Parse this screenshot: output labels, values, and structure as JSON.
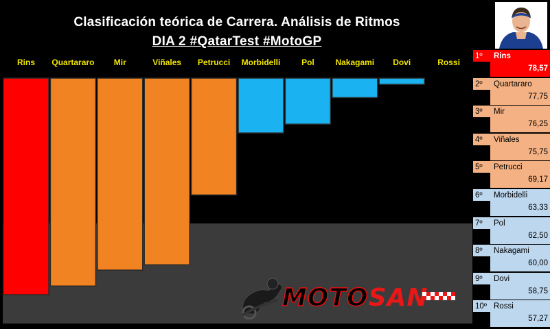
{
  "title": "Clasificación teórica de Carrera. Análisis de Ritmos",
  "subtitle": "DIA 2 #QatarTest #MotoGP",
  "logo": {
    "part1": "MOTO",
    "part2": "SAN"
  },
  "chart_data": {
    "type": "bar",
    "categories": [
      "Rins",
      "Quartararo",
      "Mir",
      "Viñales",
      "Petrucci",
      "Morbidelli",
      "Pol",
      "Nakagami",
      "Dovi",
      "Rossi"
    ],
    "values": [
      78.57,
      77.75,
      76.25,
      75.75,
      69.17,
      63.33,
      62.5,
      60.0,
      58.75,
      57.27
    ],
    "colors": [
      "#ff0000",
      "#f28322",
      "#f28322",
      "#f28322",
      "#f28322",
      "#1ab2f0",
      "#1ab2f0",
      "#1ab2f0",
      "#1ab2f0",
      "#1ab2f0"
    ],
    "ylim": [
      0,
      80
    ],
    "grid": false,
    "legend": "none"
  },
  "standings": [
    {
      "pos": "1º",
      "name": "Rins",
      "value": "78,57",
      "bg": "#ff0000",
      "fg": "#ffffff"
    },
    {
      "pos": "2º",
      "name": "Quartararo",
      "value": "77,75",
      "bg": "#f4b183",
      "fg": "#000000"
    },
    {
      "pos": "3º",
      "name": "Mir",
      "value": "76,25",
      "bg": "#f4b183",
      "fg": "#000000"
    },
    {
      "pos": "4º",
      "name": "Viñales",
      "value": "75,75",
      "bg": "#f4b183",
      "fg": "#000000"
    },
    {
      "pos": "5º",
      "name": "Petrucci",
      "value": "69,17",
      "bg": "#f4b183",
      "fg": "#000000"
    },
    {
      "pos": "6º",
      "name": "Morbidelli",
      "value": "63,33",
      "bg": "#bdd7ee",
      "fg": "#000000"
    },
    {
      "pos": "7º",
      "name": "Pol",
      "value": "62,50",
      "bg": "#bdd7ee",
      "fg": "#000000"
    },
    {
      "pos": "8º",
      "name": "Nakagami",
      "value": "60,00",
      "bg": "#bdd7ee",
      "fg": "#000000"
    },
    {
      "pos": "9º",
      "name": "Dovi",
      "value": "58,75",
      "bg": "#bdd7ee",
      "fg": "#000000"
    },
    {
      "pos": "10º",
      "name": "Rossi",
      "value": "57,27",
      "bg": "#bdd7ee",
      "fg": "#000000"
    }
  ]
}
